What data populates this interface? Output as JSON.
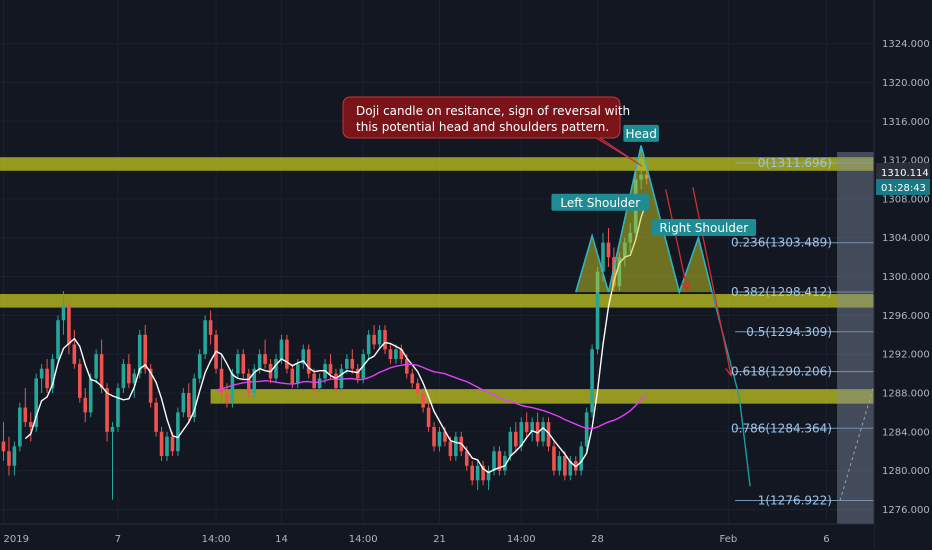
{
  "chart_data": {
    "type": "candlestick",
    "instrument_note": "",
    "y_axis": {
      "min": 1274.5,
      "max": 1328.5,
      "ticks": [
        1276,
        1280,
        1284,
        1288,
        1292,
        1296,
        1300,
        1304,
        1308,
        1312,
        1316,
        1320,
        1324
      ],
      "tick_labels": [
        "1276.000",
        "1280.000",
        "1284.000",
        "1288.000",
        "1292.000",
        "1296.000",
        "1300.000",
        "1304.000",
        "1308.000",
        "1312.000",
        "1316.000",
        "1320.000",
        "1324.000"
      ]
    },
    "x_axis": {
      "index_range": [
        0,
        160
      ],
      "ticks": [
        {
          "i": 0,
          "label": "2019"
        },
        {
          "i": 21,
          "label": "7"
        },
        {
          "i": 39,
          "label": "14:00"
        },
        {
          "i": 51,
          "label": "14"
        },
        {
          "i": 66,
          "label": "14:00"
        },
        {
          "i": 80,
          "label": "21"
        },
        {
          "i": 95,
          "label": "14:00"
        },
        {
          "i": 109,
          "label": "28"
        },
        {
          "i": 133,
          "label": "Feb"
        },
        {
          "i": 151,
          "label": "6"
        }
      ]
    },
    "price_tag": {
      "value": "1310.114",
      "countdown": "01:28:43"
    },
    "zones": [
      {
        "low": 1310.9,
        "high": 1312.3
      },
      {
        "low": 1296.8,
        "high": 1298.2
      },
      {
        "low": 1286.9,
        "high": 1288.4,
        "from_index": 38
      }
    ],
    "fibonacci": [
      {
        "label": "0(1311.696)",
        "value": 1311.696
      },
      {
        "label": "0.236(1303.489)",
        "value": 1303.489
      },
      {
        "label": "0.382(1298.412)",
        "value": 1298.412
      },
      {
        "label": "0.5(1294.309)",
        "value": 1294.309
      },
      {
        "label": "0.618(1290.206)",
        "value": 1290.206
      },
      {
        "label": "0.786(1284.364)",
        "value": 1284.364
      },
      {
        "label": "1(1276.922)",
        "value": 1276.922
      }
    ],
    "pattern_labels": [
      {
        "text": "Head",
        "i": 117,
        "y": 1314.7
      },
      {
        "text": "Left Shoulder",
        "i": 109.5,
        "y": 1307.6
      },
      {
        "text": "Right Shoulder",
        "i": 128.5,
        "y": 1305.0
      }
    ],
    "annotation": "Doji candle on resitance, sign of reversal with this potential head and shoulders pattern.",
    "head_and_shoulders": [
      [
        105,
        1298.4
      ],
      [
        108,
        1304.2
      ],
      [
        111,
        1298.4
      ],
      [
        117,
        1313.5
      ],
      [
        124,
        1298.4
      ],
      [
        127.5,
        1304.0
      ],
      [
        130,
        1298.4
      ]
    ],
    "projection_arrows": [
      {
        "from": [
          121.5,
          1309.0
        ],
        "to": [
          125.5,
          1298.6
        ]
      },
      {
        "from": [
          126.5,
          1309.2
        ],
        "to": [
          133.5,
          1289.8
        ]
      }
    ],
    "projection_path": [
      [
        130,
        1298.4
      ],
      [
        135,
        1287.6
      ],
      [
        137,
        1278.4
      ]
    ],
    "candles_ohlc": [
      [
        1283.0,
        1285.0,
        1281.0,
        1282.0
      ],
      [
        1282.0,
        1283.5,
        1279.5,
        1280.5
      ],
      [
        1280.5,
        1283.0,
        1279.5,
        1282.5
      ],
      [
        1282.5,
        1287.0,
        1282.0,
        1286.5
      ],
      [
        1286.5,
        1288.5,
        1284.5,
        1285.0
      ],
      [
        1285.0,
        1286.0,
        1283.0,
        1284.5
      ],
      [
        1284.5,
        1290.0,
        1284.0,
        1289.5
      ],
      [
        1289.5,
        1291.0,
        1288.0,
        1290.5
      ],
      [
        1290.5,
        1291.5,
        1288.0,
        1288.5
      ],
      [
        1288.5,
        1292.0,
        1288.0,
        1291.5
      ],
      [
        1291.5,
        1296.0,
        1291.0,
        1295.5
      ],
      [
        1295.5,
        1298.5,
        1294.0,
        1297.0
      ],
      [
        1297.0,
        1297.5,
        1292.0,
        1293.0
      ],
      [
        1293.0,
        1294.5,
        1290.5,
        1291.0
      ],
      [
        1291.0,
        1291.5,
        1287.0,
        1287.5
      ],
      [
        1287.5,
        1288.5,
        1285.0,
        1286.0
      ],
      [
        1286.0,
        1290.0,
        1285.5,
        1289.5
      ],
      [
        1289.5,
        1292.5,
        1289.0,
        1292.0
      ],
      [
        1292.0,
        1293.5,
        1288.0,
        1288.5
      ],
      [
        1288.5,
        1289.0,
        1283.0,
        1284.0
      ],
      [
        1284.0,
        1285.0,
        1277.0,
        1284.5
      ],
      [
        1284.5,
        1289.0,
        1284.0,
        1288.5
      ],
      [
        1288.5,
        1291.5,
        1288.0,
        1291.0
      ],
      [
        1291.0,
        1292.0,
        1288.5,
        1289.0
      ],
      [
        1289.0,
        1290.5,
        1287.5,
        1290.0
      ],
      [
        1290.0,
        1294.5,
        1289.5,
        1294.0
      ],
      [
        1294.0,
        1295.0,
        1290.0,
        1290.5
      ],
      [
        1290.5,
        1291.0,
        1286.5,
        1287.0
      ],
      [
        1287.0,
        1287.5,
        1283.5,
        1284.0
      ],
      [
        1284.0,
        1284.5,
        1281.0,
        1281.5
      ],
      [
        1281.5,
        1284.0,
        1281.0,
        1283.5
      ],
      [
        1283.5,
        1284.0,
        1281.5,
        1282.0
      ],
      [
        1282.0,
        1286.5,
        1281.5,
        1286.0
      ],
      [
        1286.0,
        1288.5,
        1285.5,
        1288.0
      ],
      [
        1288.0,
        1289.0,
        1285.0,
        1285.5
      ],
      [
        1285.5,
        1290.0,
        1285.0,
        1289.5
      ],
      [
        1289.5,
        1292.5,
        1289.0,
        1292.0
      ],
      [
        1292.0,
        1296.0,
        1291.5,
        1295.5
      ],
      [
        1295.5,
        1296.5,
        1293.0,
        1294.0
      ],
      [
        1294.0,
        1294.5,
        1290.0,
        1290.5
      ],
      [
        1290.5,
        1292.0,
        1287.0,
        1288.0
      ],
      [
        1288.0,
        1289.0,
        1286.5,
        1287.0
      ],
      [
        1287.0,
        1290.5,
        1286.5,
        1290.0
      ],
      [
        1290.0,
        1292.5,
        1289.5,
        1292.0
      ],
      [
        1292.0,
        1292.5,
        1289.5,
        1290.0
      ],
      [
        1290.0,
        1290.5,
        1287.5,
        1288.0
      ],
      [
        1288.0,
        1291.0,
        1287.5,
        1290.5
      ],
      [
        1290.5,
        1292.5,
        1290.0,
        1292.0
      ],
      [
        1292.0,
        1293.5,
        1290.5,
        1291.0
      ],
      [
        1291.0,
        1291.5,
        1289.0,
        1289.5
      ],
      [
        1289.5,
        1292.0,
        1289.0,
        1291.5
      ],
      [
        1291.5,
        1294.0,
        1291.0,
        1293.5
      ],
      [
        1293.5,
        1294.0,
        1290.0,
        1290.5
      ],
      [
        1290.5,
        1291.0,
        1288.5,
        1289.0
      ],
      [
        1289.0,
        1291.5,
        1288.5,
        1291.0
      ],
      [
        1291.0,
        1293.0,
        1290.5,
        1292.5
      ],
      [
        1292.5,
        1293.0,
        1289.5,
        1290.0
      ],
      [
        1290.0,
        1290.5,
        1288.0,
        1288.5
      ],
      [
        1288.5,
        1290.0,
        1288.0,
        1289.5
      ],
      [
        1289.5,
        1291.5,
        1289.0,
        1291.0
      ],
      [
        1291.0,
        1292.0,
        1289.5,
        1290.0
      ],
      [
        1290.0,
        1290.5,
        1288.0,
        1288.5
      ],
      [
        1288.5,
        1291.0,
        1288.0,
        1290.5
      ],
      [
        1290.5,
        1292.0,
        1290.0,
        1291.5
      ],
      [
        1291.5,
        1292.5,
        1290.0,
        1290.5
      ],
      [
        1290.5,
        1291.0,
        1289.0,
        1289.5
      ],
      [
        1289.5,
        1292.5,
        1289.0,
        1292.0
      ],
      [
        1292.0,
        1294.5,
        1291.5,
        1294.0
      ],
      [
        1294.0,
        1295.0,
        1292.5,
        1293.0
      ],
      [
        1293.0,
        1295.0,
        1292.5,
        1294.5
      ],
      [
        1294.5,
        1295.0,
        1292.0,
        1292.5
      ],
      [
        1292.5,
        1293.0,
        1291.0,
        1291.5
      ],
      [
        1291.5,
        1293.0,
        1291.0,
        1292.5
      ],
      [
        1292.5,
        1293.0,
        1291.0,
        1291.5
      ],
      [
        1291.5,
        1292.0,
        1289.5,
        1290.0
      ],
      [
        1290.0,
        1290.5,
        1288.5,
        1289.0
      ],
      [
        1289.0,
        1289.5,
        1287.5,
        1288.0
      ],
      [
        1288.0,
        1288.5,
        1286.0,
        1286.5
      ],
      [
        1286.5,
        1287.0,
        1284.0,
        1284.5
      ],
      [
        1284.5,
        1285.0,
        1282.0,
        1282.5
      ],
      [
        1282.5,
        1284.5,
        1282.0,
        1284.0
      ],
      [
        1284.0,
        1284.5,
        1282.5,
        1283.0
      ],
      [
        1283.0,
        1283.5,
        1281.0,
        1281.5
      ],
      [
        1281.5,
        1284.0,
        1281.0,
        1283.5
      ],
      [
        1283.5,
        1284.0,
        1281.5,
        1282.0
      ],
      [
        1282.0,
        1282.5,
        1280.0,
        1280.5
      ],
      [
        1280.5,
        1281.0,
        1278.5,
        1279.0
      ],
      [
        1279.0,
        1281.0,
        1278.0,
        1280.5
      ],
      [
        1280.5,
        1281.0,
        1278.5,
        1279.0
      ],
      [
        1279.0,
        1280.5,
        1278.0,
        1280.0
      ],
      [
        1280.0,
        1282.5,
        1279.5,
        1282.0
      ],
      [
        1282.0,
        1282.5,
        1279.5,
        1280.0
      ],
      [
        1280.0,
        1282.0,
        1279.5,
        1281.5
      ],
      [
        1281.5,
        1284.5,
        1281.0,
        1284.0
      ],
      [
        1284.0,
        1285.0,
        1282.0,
        1282.5
      ],
      [
        1282.5,
        1285.5,
        1282.0,
        1285.0
      ],
      [
        1285.0,
        1286.0,
        1283.5,
        1284.0
      ],
      [
        1284.0,
        1285.5,
        1283.0,
        1285.0
      ],
      [
        1285.0,
        1286.0,
        1282.5,
        1283.0
      ],
      [
        1283.0,
        1285.5,
        1282.5,
        1285.0
      ],
      [
        1285.0,
        1285.5,
        1282.0,
        1282.5
      ],
      [
        1282.5,
        1283.0,
        1279.5,
        1280.0
      ],
      [
        1280.0,
        1282.0,
        1279.5,
        1281.5
      ],
      [
        1281.5,
        1282.0,
        1279.0,
        1279.5
      ],
      [
        1279.5,
        1281.5,
        1279.0,
        1281.0
      ],
      [
        1281.0,
        1281.5,
        1279.5,
        1280.0
      ],
      [
        1280.0,
        1283.0,
        1279.5,
        1282.5
      ],
      [
        1282.5,
        1286.5,
        1282.0,
        1286.0
      ],
      [
        1286.0,
        1293.0,
        1285.5,
        1292.5
      ],
      [
        1292.5,
        1301.0,
        1292.0,
        1300.5
      ],
      [
        1300.5,
        1304.5,
        1299.5,
        1303.5
      ],
      [
        1303.5,
        1305.0,
        1301.0,
        1302.0
      ],
      [
        1302.0,
        1303.0,
        1298.5,
        1299.0
      ],
      [
        1299.0,
        1302.5,
        1298.5,
        1302.0
      ],
      [
        1302.0,
        1304.0,
        1301.0,
        1303.5
      ],
      [
        1303.5,
        1305.5,
        1302.5,
        1304.5
      ],
      [
        1304.5,
        1311.0,
        1304.0,
        1310.0
      ],
      [
        1310.0,
        1313.5,
        1309.0,
        1310.5
      ],
      [
        1310.5,
        1311.5,
        1309.5,
        1310.1
      ]
    ],
    "moving_averages": [
      {
        "name": "",
        "color": "#ffffff",
        "window": 5
      },
      {
        "name": "",
        "color": "#e040fb",
        "window": 40
      }
    ]
  }
}
